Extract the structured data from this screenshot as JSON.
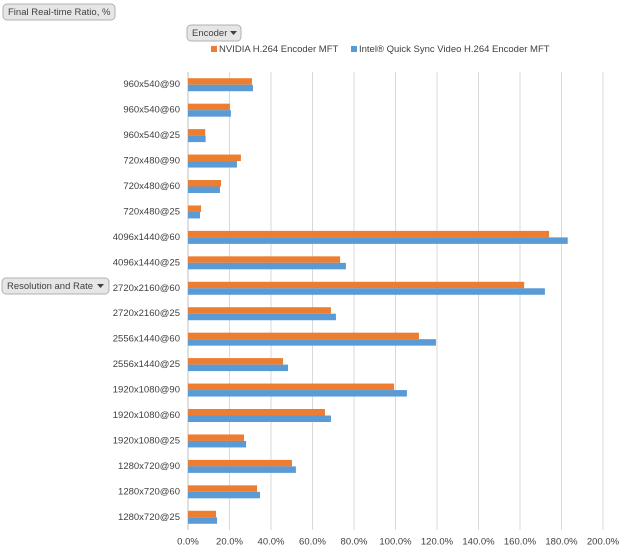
{
  "chart_data": {
    "type": "bar",
    "orientation": "horizontal",
    "value_field": "Final Real-time Ratio, %",
    "legend_field": "Encoder",
    "axis_field": "Resolution and Rate",
    "categories": [
      "960x540@90",
      "960x540@60",
      "960x540@25",
      "720x480@90",
      "720x480@60",
      "720x480@25",
      "4096x1440@60",
      "4096x1440@25",
      "2720x2160@60",
      "2720x2160@25",
      "2556x1440@60",
      "2556x1440@25",
      "1920x1080@90",
      "1920x1080@60",
      "1920x1080@25",
      "1280x720@90",
      "1280x720@60",
      "1280x720@25"
    ],
    "series": [
      {
        "name": "NVIDIA H.264 Encoder MFT",
        "color": "#ed7d31",
        "values": [
          30.8,
          20.2,
          8.3,
          25.5,
          15.9,
          6.3,
          174,
          73.3,
          162,
          68.9,
          111.3,
          45.8,
          99.3,
          66,
          27,
          50.1,
          33.3,
          13.5
        ]
      },
      {
        "name": "Intel® Quick Sync Video H.264 Encoder MFT",
        "color": "#5b9bd5",
        "values": [
          31.3,
          20.7,
          8.5,
          23.6,
          15.4,
          5.8,
          183,
          76.1,
          172,
          71.3,
          119.5,
          48.2,
          105.5,
          68.9,
          28,
          52,
          34.7,
          14
        ]
      }
    ],
    "xlim": [
      0,
      200
    ],
    "xticks": [
      {
        "value": 0,
        "label": "0.0%"
      },
      {
        "value": 20,
        "label": "20.0%"
      },
      {
        "value": 40,
        "label": "40.0%"
      },
      {
        "value": 60,
        "label": "60.0%"
      },
      {
        "value": 80,
        "label": "80.0%"
      },
      {
        "value": 100,
        "label": "100.0%"
      },
      {
        "value": 120,
        "label": "120.0%"
      },
      {
        "value": 140,
        "label": "140.0%"
      },
      {
        "value": 160,
        "label": "160.0%"
      },
      {
        "value": 180,
        "label": "180.0%"
      },
      {
        "value": 200,
        "label": "200.0%"
      }
    ],
    "grid": true,
    "legend": "top"
  }
}
